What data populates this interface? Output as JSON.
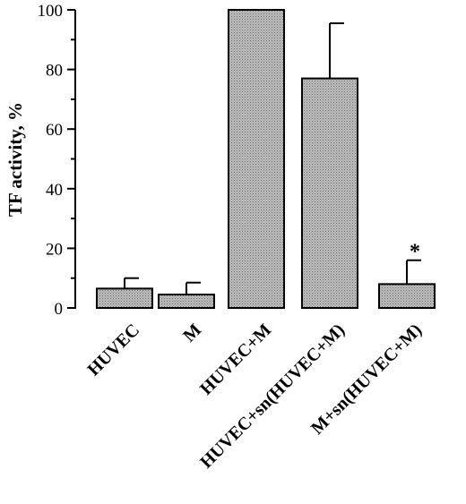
{
  "chart_data": {
    "type": "bar",
    "title": "",
    "xlabel": "",
    "ylabel": "TF activity, %",
    "ylim": [
      0,
      100
    ],
    "yticks": [
      0,
      20,
      40,
      60,
      80,
      100
    ],
    "ytick_labels": [
      "0",
      "20",
      "40",
      "60",
      "80",
      "100"
    ],
    "categories": [
      "HUVEC",
      "M",
      "HUVEC+M",
      "HUVEC+sn(HUVEC+M)",
      "M+sn(HUVEC+M)"
    ],
    "values": [
      6.5,
      4.5,
      100,
      77,
      8
    ],
    "error_upper": [
      3.5,
      4,
      0,
      18.5,
      8
    ],
    "annotations": [
      {
        "category": "M+sn(HUVEC+M)",
        "text": "*"
      }
    ],
    "grid": false,
    "legend": "none",
    "colors": {
      "bar_fill": "#b0b0b0",
      "bar_stroke": "#000000",
      "axis": "#000000"
    }
  }
}
